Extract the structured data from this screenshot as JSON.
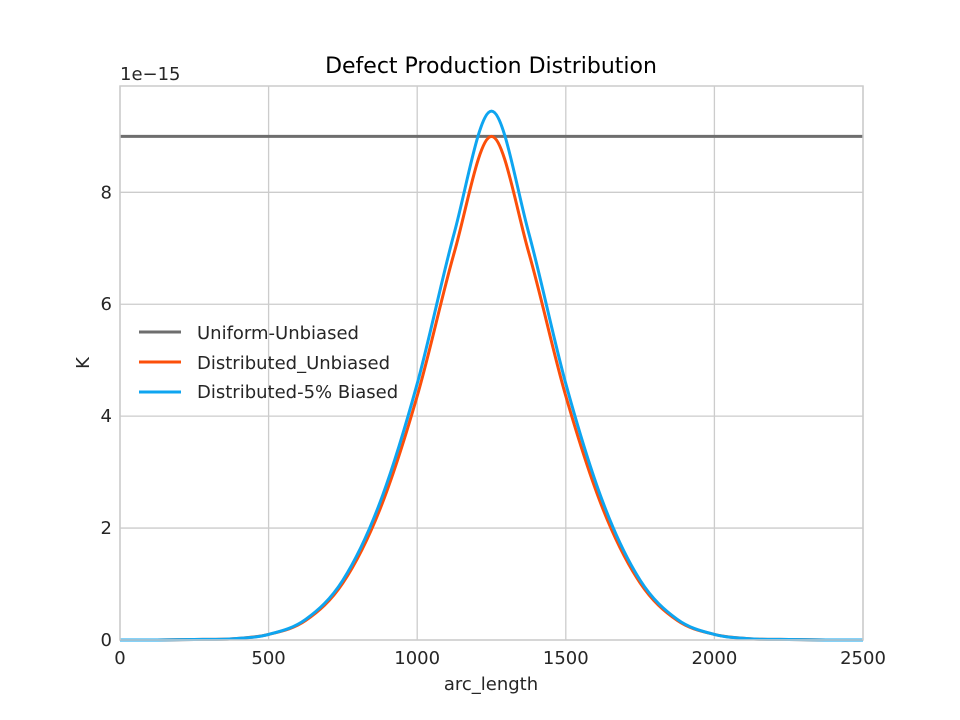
{
  "chart_data": {
    "type": "line",
    "title": "Defect Production Distribution",
    "xlabel": "arc_length",
    "ylabel": "K",
    "y_offset_label": "1e−15",
    "xlim": [
      0,
      2500
    ],
    "ylim": [
      0,
      9.9
    ],
    "x_ticks": [
      0,
      500,
      1000,
      1500,
      2000,
      2500
    ],
    "y_ticks": [
      0,
      2,
      4,
      6,
      8
    ],
    "grid": true,
    "legend_position": "center-left",
    "series": [
      {
        "name": "Uniform-Unbiased",
        "color": "#6e6e6e",
        "x": [
          0,
          2500
        ],
        "y": [
          9.0,
          9.0
        ]
      },
      {
        "name": "Distributed_Unbiased",
        "color": "#fc4f0a",
        "x": [
          0,
          125,
          250,
          375,
          500,
          625,
          750,
          875,
          1000,
          1125,
          1250,
          1375,
          1500,
          1625,
          1750,
          1875,
          2000,
          2125,
          2250,
          2375,
          2500
        ],
        "y": [
          0.0,
          0.0,
          0.01,
          0.02,
          0.1,
          0.35,
          1.02,
          2.34,
          4.36,
          6.93,
          9.0,
          6.93,
          4.36,
          2.34,
          1.02,
          0.35,
          0.1,
          0.02,
          0.01,
          0.0,
          0.0
        ]
      },
      {
        "name": "Distributed-5% Biased",
        "color": "#0ea5f0",
        "x": [
          0,
          125,
          250,
          375,
          500,
          625,
          750,
          875,
          1000,
          1125,
          1250,
          1375,
          1500,
          1625,
          1750,
          1875,
          2000,
          2125,
          2250,
          2375,
          2500
        ],
        "y": [
          0.0,
          0.0,
          0.01,
          0.02,
          0.1,
          0.37,
          1.07,
          2.46,
          4.58,
          7.28,
          9.45,
          7.28,
          4.58,
          2.46,
          1.07,
          0.37,
          0.1,
          0.02,
          0.01,
          0.0,
          0.0
        ]
      }
    ]
  }
}
